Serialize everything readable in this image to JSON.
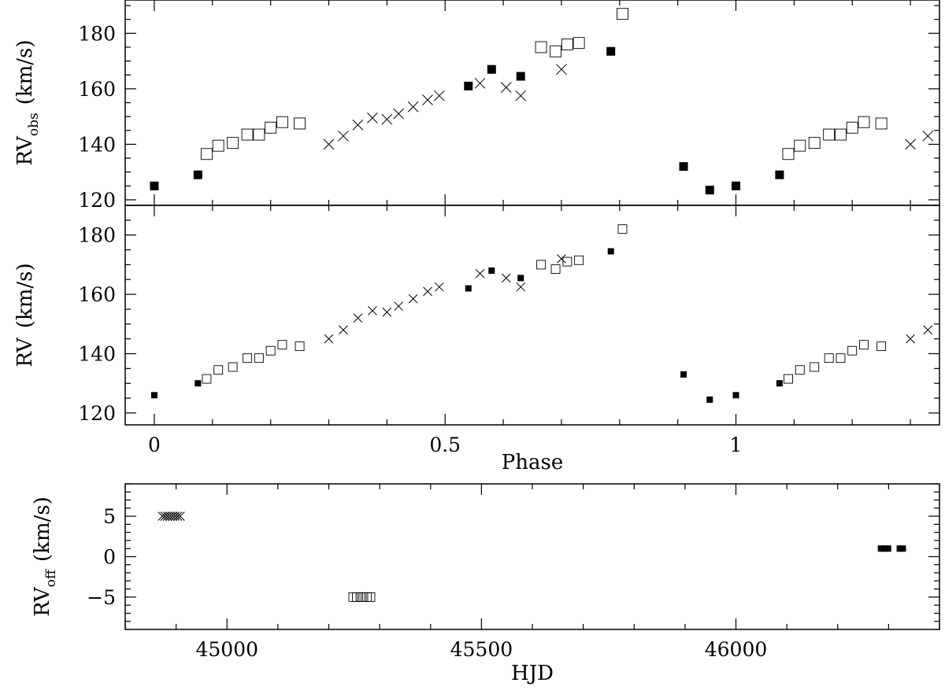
{
  "chart_data": [
    {
      "type": "scatter",
      "panel": "top",
      "ylabel_main": "RV",
      "ylabel_sub": "obs",
      "ylabel_unit": "(km/s)",
      "xlim": [
        -0.05,
        1.35
      ],
      "ylim": [
        118,
        192
      ],
      "xticks": [
        0,
        0.5,
        1
      ],
      "yticks": [
        120,
        140,
        160,
        180
      ],
      "ytick_labels": [
        "120",
        "140",
        "160",
        "180"
      ],
      "series": [
        {
          "marker": "filled-square",
          "points": [
            [
              0.0,
              125
            ],
            [
              0.075,
              129
            ],
            [
              0.54,
              161
            ],
            [
              0.58,
              167
            ],
            [
              0.63,
              164.5
            ],
            [
              0.785,
              173.5
            ],
            [
              0.91,
              132
            ],
            [
              0.955,
              123.5
            ],
            [
              1.0,
              125
            ],
            [
              1.075,
              129
            ]
          ]
        },
        {
          "marker": "open-square",
          "points": [
            [
              0.09,
              136.5
            ],
            [
              0.11,
              139.5
            ],
            [
              0.135,
              140.5
            ],
            [
              0.16,
              143.5
            ],
            [
              0.18,
              143.5
            ],
            [
              0.2,
              146
            ],
            [
              0.22,
              148
            ],
            [
              0.25,
              147.5
            ],
            [
              0.665,
              175
            ],
            [
              0.69,
              173.5
            ],
            [
              0.71,
              176
            ],
            [
              0.73,
              176.5
            ],
            [
              0.805,
              187
            ],
            [
              1.09,
              136.5
            ],
            [
              1.11,
              139.5
            ],
            [
              1.135,
              140.5
            ],
            [
              1.16,
              143.5
            ],
            [
              1.18,
              143.5
            ],
            [
              1.2,
              146
            ],
            [
              1.22,
              148
            ],
            [
              1.25,
              147.5
            ]
          ]
        },
        {
          "marker": "cross",
          "points": [
            [
              0.3,
              140
            ],
            [
              0.325,
              143
            ],
            [
              0.35,
              147
            ],
            [
              0.375,
              149.5
            ],
            [
              0.4,
              149
            ],
            [
              0.42,
              151
            ],
            [
              0.445,
              153.5
            ],
            [
              0.47,
              156
            ],
            [
              0.49,
              157.5
            ],
            [
              0.56,
              162
            ],
            [
              0.605,
              160.5
            ],
            [
              0.63,
              157.5
            ],
            [
              0.7,
              167
            ],
            [
              1.3,
              140
            ],
            [
              1.33,
              143
            ]
          ]
        }
      ]
    },
    {
      "type": "scatter",
      "panel": "middle",
      "xlabel": "Phase",
      "ylabel_main": "RV",
      "ylabel_unit": "(km/s)",
      "xlim": [
        -0.05,
        1.35
      ],
      "ylim": [
        116,
        190
      ],
      "xticks": [
        0,
        0.5,
        1
      ],
      "xtick_labels": [
        "0",
        "0.5",
        "1"
      ],
      "yticks": [
        120,
        140,
        160,
        180
      ],
      "ytick_labels": [
        "120",
        "140",
        "160",
        "180"
      ],
      "series": [
        {
          "marker": "filled-square",
          "points": [
            [
              0.0,
              126
            ],
            [
              0.075,
              130
            ],
            [
              0.54,
              162
            ],
            [
              0.58,
              168
            ],
            [
              0.63,
              165.5
            ],
            [
              0.785,
              174.5
            ],
            [
              0.91,
              133
            ],
            [
              0.955,
              124.5
            ],
            [
              1.0,
              126
            ],
            [
              1.075,
              130
            ]
          ]
        },
        {
          "marker": "open-square",
          "points": [
            [
              0.09,
              131.5
            ],
            [
              0.11,
              134.5
            ],
            [
              0.135,
              135.5
            ],
            [
              0.16,
              138.5
            ],
            [
              0.18,
              138.5
            ],
            [
              0.2,
              141
            ],
            [
              0.22,
              143
            ],
            [
              0.25,
              142.5
            ],
            [
              0.665,
              170
            ],
            [
              0.69,
              168.5
            ],
            [
              0.71,
              171
            ],
            [
              0.73,
              171.5
            ],
            [
              0.805,
              182
            ],
            [
              1.09,
              131.5
            ],
            [
              1.11,
              134.5
            ],
            [
              1.135,
              135.5
            ],
            [
              1.16,
              138.5
            ],
            [
              1.18,
              138.5
            ],
            [
              1.2,
              141
            ],
            [
              1.22,
              143
            ],
            [
              1.25,
              142.5
            ]
          ]
        },
        {
          "marker": "cross",
          "points": [
            [
              0.3,
              145
            ],
            [
              0.325,
              148
            ],
            [
              0.35,
              152
            ],
            [
              0.375,
              154.5
            ],
            [
              0.4,
              154
            ],
            [
              0.42,
              156
            ],
            [
              0.445,
              158.5
            ],
            [
              0.47,
              161
            ],
            [
              0.49,
              162.5
            ],
            [
              0.56,
              167
            ],
            [
              0.605,
              165.5
            ],
            [
              0.63,
              162.5
            ],
            [
              0.7,
              172
            ],
            [
              1.3,
              145
            ],
            [
              1.33,
              148
            ]
          ]
        }
      ]
    },
    {
      "type": "scatter",
      "panel": "bottom",
      "xlabel": "HJD",
      "ylabel_main": "RV",
      "ylabel_sub": "off",
      "ylabel_unit": "(km/s)",
      "xlim": [
        44800,
        46400
      ],
      "ylim": [
        -9,
        9
      ],
      "xticks": [
        45000,
        45500,
        46000
      ],
      "xtick_labels": [
        "45000",
        "45500",
        "46000"
      ],
      "yticks": [
        -5,
        0,
        5
      ],
      "ytick_labels": [
        "−5",
        "0",
        "5"
      ],
      "series": [
        {
          "marker": "cross",
          "points": [
            [
              44873,
              5
            ],
            [
              44878,
              5
            ],
            [
              44883,
              5
            ],
            [
              44888,
              5
            ],
            [
              44893,
              5
            ],
            [
              44898,
              5
            ],
            [
              44903,
              5
            ],
            [
              44908,
              5
            ]
          ]
        },
        {
          "marker": "open-square",
          "points": [
            [
              45248,
              -5
            ],
            [
              45255,
              -5
            ],
            [
              45262,
              -5
            ],
            [
              45268,
              -5
            ],
            [
              45275,
              -5
            ],
            [
              45282,
              -5
            ]
          ]
        },
        {
          "marker": "filled-square",
          "points": [
            [
              46285,
              1
            ],
            [
              46292,
              1
            ],
            [
              46299,
              1
            ],
            [
              46322,
              1
            ],
            [
              46328,
              1
            ]
          ]
        }
      ]
    }
  ]
}
